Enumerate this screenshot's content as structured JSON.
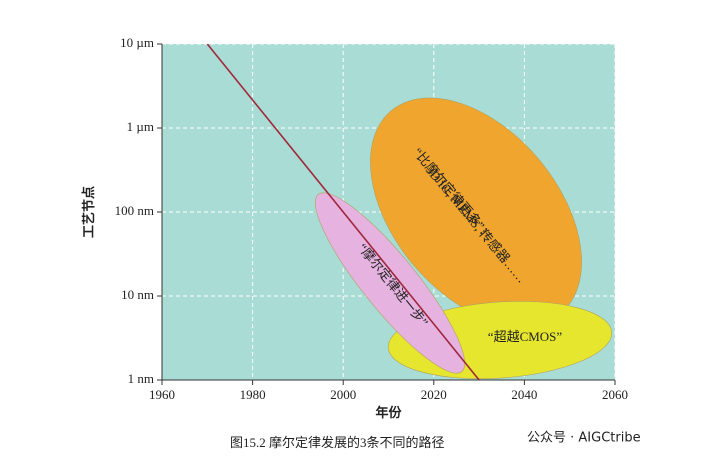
{
  "chart_data": {
    "type": "line",
    "x_label": "年份",
    "y_label": "工艺节点",
    "caption": "图15.2 摩尔定律发展的3条不同的路径",
    "watermark": "公众号 · AIGCtribe",
    "xlim": [
      1960,
      2060
    ],
    "xticks": [
      1960,
      1980,
      2000,
      2020,
      2040,
      2060
    ],
    "ylim": [
      1,
      10000
    ],
    "log_y": true,
    "yticks": [
      {
        "value": 1,
        "label": "1 nm"
      },
      {
        "value": 10,
        "label": "10 nm"
      },
      {
        "value": 100,
        "label": "100 nm"
      },
      {
        "value": 1000,
        "label": "1 µm"
      },
      {
        "value": 10000,
        "label": "10 µm"
      }
    ],
    "grid": true,
    "series": [
      {
        "color": "#a0283a",
        "x": [
          1970,
          2030
        ],
        "values": [
          10000,
          1
        ]
      }
    ],
    "annotations": [
      {
        "text": [
          "“比摩尔定律更多”：",
          "3D IC, MEMS, 传感器……"
        ],
        "color": "#f0a62e"
      },
      {
        "text": [
          "“超越CMOS”"
        ],
        "color": "#e6e62e"
      },
      {
        "text": [
          "“摩尔定律进一步”"
        ],
        "color": "#e6b2e0"
      }
    ]
  }
}
